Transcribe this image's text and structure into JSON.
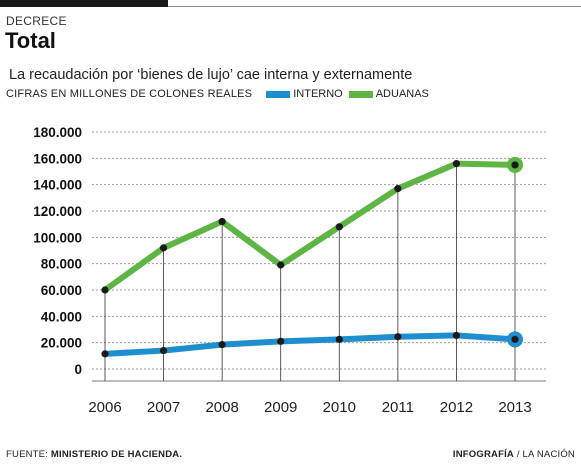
{
  "header": {
    "kicker": "DECRECE",
    "title": "Total",
    "subtitle": "La recaudación por ‘bienes de lujo’ cae interna y externamente",
    "units_note": "CIFRAS EN MILLONES DE COLONES REALES"
  },
  "footer": {
    "source_prefix": "FUENTE:",
    "source": "MINISTERIO DE HACIENDA.",
    "credit_bold": "INFOGRAFÍA",
    "credit_rest": "/ LA NACIÓN"
  },
  "colors": {
    "interno": "#1e8ecf",
    "aduanas": "#5db543",
    "grid": "#9a9a9a",
    "markers": "#1a1a1a"
  },
  "chart_data": {
    "type": "line",
    "title": "Total",
    "subtitle": "La recaudación por ‘bienes de lujo’ cae interna y externamente",
    "ylabel": "CIFRAS EN MILLONES DE COLONES REALES",
    "x": [
      2006,
      2007,
      2008,
      2009,
      2010,
      2011,
      2012,
      2013
    ],
    "x_tick_labels": [
      "2006",
      "2007",
      "2008",
      "2009",
      "2010",
      "2011",
      "2012",
      "2013"
    ],
    "ylim": [
      0,
      180000
    ],
    "y_ticks": [
      0,
      20000,
      40000,
      60000,
      80000,
      100000,
      120000,
      140000,
      160000,
      180000
    ],
    "y_tick_labels": [
      "0",
      "20.000",
      "40.000",
      "60.000",
      "80.000",
      "100.000",
      "120.000",
      "140.000",
      "160.000",
      "180.000"
    ],
    "grid": true,
    "legend_position": "top-left",
    "series": [
      {
        "name": "INTERNO",
        "color": "#1e8ecf",
        "values": [
          11500,
          14000,
          18500,
          21000,
          22500,
          24500,
          25500,
          22500
        ]
      },
      {
        "name": "ADUANAS",
        "color": "#5db543",
        "values": [
          60000,
          92000,
          112000,
          79000,
          108000,
          137000,
          156000,
          155000
        ]
      }
    ]
  }
}
